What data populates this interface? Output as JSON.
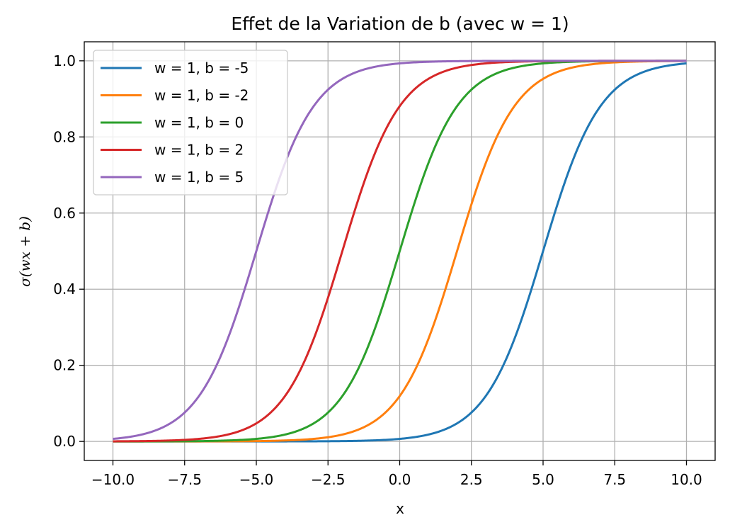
{
  "chart_data": {
    "type": "line",
    "title": "Effet de la Variation de b (avec w = 1)",
    "xlabel": "x",
    "ylabel": "σ(wx + b)",
    "xlim": [
      -11.0,
      11.0
    ],
    "ylim": [
      -0.05,
      1.05
    ],
    "x_range": [
      -10,
      10
    ],
    "x_ticks": [
      -10.0,
      -7.5,
      -5.0,
      -2.5,
      0.0,
      2.5,
      5.0,
      7.5,
      10.0
    ],
    "x_tick_labels": [
      "−10.0",
      "−7.5",
      "−5.0",
      "−2.5",
      "0.0",
      "2.5",
      "5.0",
      "7.5",
      "10.0"
    ],
    "y_ticks": [
      0.0,
      0.2,
      0.4,
      0.6,
      0.8,
      1.0
    ],
    "y_tick_labels": [
      "0.0",
      "0.2",
      "0.4",
      "0.6",
      "0.8",
      "1.0"
    ],
    "grid": true,
    "legend_position": "upper-left",
    "series": [
      {
        "name": "w = 1, b = -5",
        "w": 1,
        "b": -5,
        "color": "#1f77b4"
      },
      {
        "name": "w = 1, b = -2",
        "w": 1,
        "b": -2,
        "color": "#ff7f0e"
      },
      {
        "name": "w = 1, b = 0",
        "w": 1,
        "b": 0,
        "color": "#2ca02c"
      },
      {
        "name": "w = 1, b = 2",
        "w": 1,
        "b": 2,
        "color": "#d62728"
      },
      {
        "name": "w = 1, b = 5",
        "w": 1,
        "b": 5,
        "color": "#9467bd"
      }
    ]
  }
}
